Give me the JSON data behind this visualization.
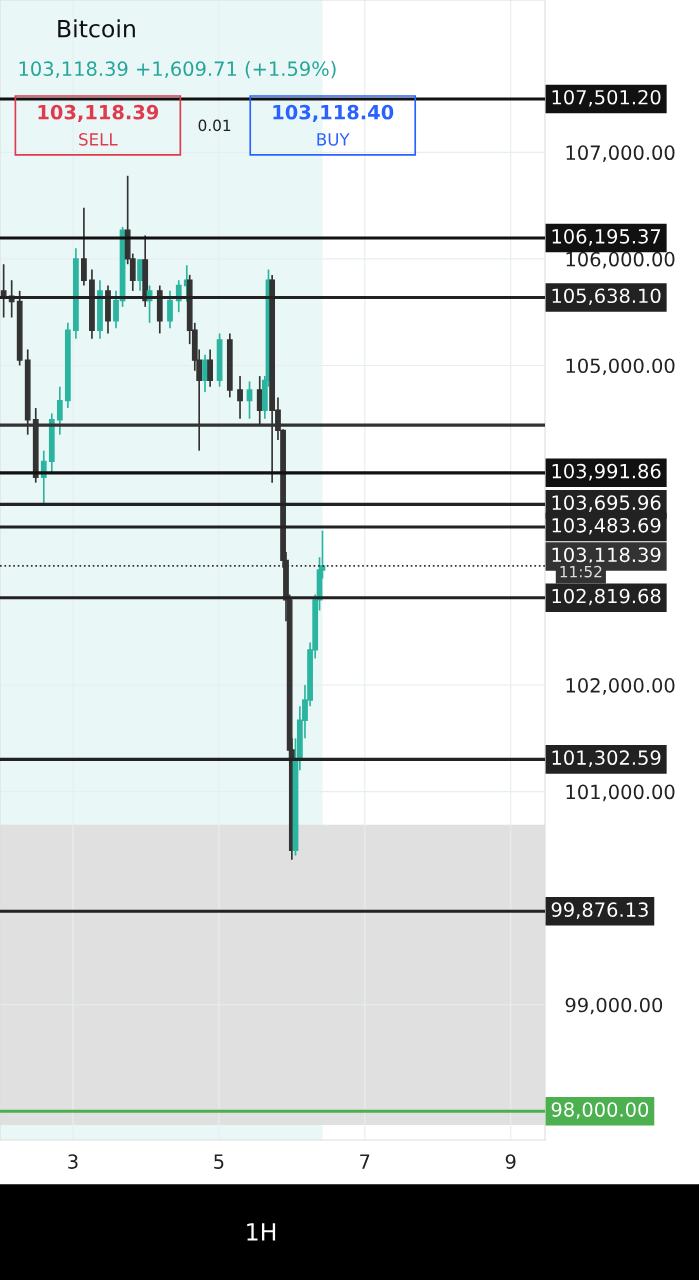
{
  "chart_data": {
    "type": "candlestick",
    "title": "Bitcoin",
    "subtitle": "103,118.39 +1,609.71 (+1.59%)",
    "annotations": [
      "103,118.39",
      "SELL",
      "0.01",
      "103,118.40",
      "BUY",
      "11:52",
      "1H"
    ],
    "x": [
      2.05,
      2.16,
      2.27,
      2.38,
      2.49,
      2.6,
      2.71,
      2.82,
      2.93,
      3.04,
      3.15,
      3.26,
      3.37,
      3.48,
      3.59,
      3.68,
      3.75,
      3.82,
      3.92,
      3.99,
      4.05,
      4.19,
      4.33,
      4.45,
      4.56,
      4.6,
      4.67,
      4.73,
      4.81,
      4.88,
      5.01,
      5.15,
      5.29,
      5.42,
      5.56,
      5.63,
      5.68,
      5.73,
      5.81,
      5.88,
      5.92,
      5.97,
      6.0,
      6.05,
      6.11,
      6.18,
      6.25,
      6.32,
      6.38,
      6.42
    ],
    "ohlc": [
      [
        105700,
        105950,
        105450,
        105650
      ],
      [
        105650,
        105800,
        105450,
        105600
      ],
      [
        105600,
        105700,
        105000,
        105050
      ],
      [
        105050,
        105150,
        104350,
        104490
      ],
      [
        104490,
        104600,
        103900,
        103950
      ],
      [
        103950,
        104200,
        103690,
        104100
      ],
      [
        104100,
        104550,
        104000,
        104490
      ],
      [
        104490,
        104800,
        104350,
        104670
      ],
      [
        104670,
        105400,
        104600,
        105330
      ],
      [
        105330,
        106100,
        105250,
        106000
      ],
      [
        106000,
        106480,
        105750,
        105800
      ],
      [
        105800,
        105900,
        105250,
        105330
      ],
      [
        105330,
        105800,
        105250,
        105700
      ],
      [
        105700,
        105750,
        105300,
        105420
      ],
      [
        105420,
        105700,
        105350,
        105610
      ],
      [
        105610,
        106300,
        105550,
        106270
      ],
      [
        106270,
        106780,
        105950,
        106000
      ],
      [
        106000,
        106050,
        105700,
        105800
      ],
      [
        105800,
        106000,
        105700,
        105990
      ],
      [
        105990,
        106220,
        105550,
        105610
      ],
      [
        105610,
        105750,
        105400,
        105700
      ],
      [
        105700,
        105750,
        105300,
        105420
      ],
      [
        105420,
        105700,
        105350,
        105610
      ],
      [
        105610,
        105800,
        105500,
        105750
      ],
      [
        105750,
        105940,
        105600,
        105800
      ],
      [
        105800,
        105850,
        105200,
        105330
      ],
      [
        105330,
        105400,
        104950,
        105050
      ],
      [
        105050,
        105150,
        104200,
        104860
      ],
      [
        104860,
        105100,
        104750,
        105050
      ],
      [
        105050,
        105150,
        104800,
        104860
      ],
      [
        104860,
        105300,
        104800,
        105240
      ],
      [
        105240,
        105300,
        104700,
        104770
      ],
      [
        104770,
        104900,
        104500,
        104670
      ],
      [
        104670,
        104850,
        104500,
        104770
      ],
      [
        104770,
        104900,
        104450,
        104580
      ],
      [
        104580,
        104900,
        104500,
        104860
      ],
      [
        104860,
        105900,
        104800,
        105800
      ],
      [
        105800,
        105850,
        103900,
        104580
      ],
      [
        104580,
        104700,
        104300,
        104390
      ],
      [
        104390,
        104400,
        103100,
        103170
      ],
      [
        103170,
        103250,
        102600,
        102800
      ],
      [
        102800,
        102850,
        101300,
        101390
      ],
      [
        101390,
        101500,
        100360,
        100450
      ],
      [
        100450,
        101500,
        100400,
        101300
      ],
      [
        101300,
        101800,
        101200,
        101670
      ],
      [
        101670,
        102000,
        101500,
        101860
      ],
      [
        101860,
        102400,
        101800,
        102330
      ],
      [
        102330,
        102850,
        102250,
        102800
      ],
      [
        102800,
        103200,
        102700,
        103080
      ],
      [
        103080,
        103450,
        103000,
        103118
      ]
    ],
    "colors": [
      "#333333",
      "#333333",
      "#333333",
      "#333333",
      "#333333",
      "#2bb5a0",
      "#2bb5a0",
      "#2bb5a0",
      "#2bb5a0",
      "#2bb5a0",
      "#333333",
      "#333333",
      "#2bb5a0",
      "#333333",
      "#2bb5a0",
      "#2bb5a0",
      "#333333",
      "#333333",
      "#2bb5a0",
      "#333333",
      "#2bb5a0",
      "#333333",
      "#2bb5a0",
      "#2bb5a0",
      "#2bb5a0",
      "#333333",
      "#333333",
      "#333333",
      "#2bb5a0",
      "#333333",
      "#2bb5a0",
      "#333333",
      "#333333",
      "#2bb5a0",
      "#333333",
      "#2bb5a0",
      "#2bb5a0",
      "#333333",
      "#333333",
      "#333333",
      "#333333",
      "#333333",
      "#333333",
      "#2bb5a0",
      "#2bb5a0",
      "#2bb5a0",
      "#2bb5a0",
      "#2bb5a0",
      "#2bb5a0",
      "#2bb5a0"
    ],
    "xlim": [
      2.0,
      9.47
    ],
    "xticks": [
      3,
      5,
      7,
      9
    ],
    "ylim": [
      97730,
      108430
    ],
    "yticks": [
      {
        "value": 99000,
        "label": "99,000.00"
      },
      {
        "value": 101000,
        "label": "101,000.00"
      },
      {
        "value": 102000,
        "label": "102,000.00"
      },
      {
        "value": 105000,
        "label": "105,000.00"
      },
      {
        "value": 106000,
        "label": "106,000.00"
      },
      {
        "value": 107000,
        "label": "107,000.00"
      }
    ],
    "grid": true,
    "ref_lines": [
      {
        "axis": "y",
        "value": 107501.2,
        "label": "107,501.20",
        "color": "#111111"
      },
      {
        "axis": "y",
        "value": 106195.37,
        "label": "106,195.37",
        "color": "#111111"
      },
      {
        "axis": "y",
        "value": 105638.1,
        "label": "105,638.10",
        "color": "#222222"
      },
      {
        "axis": "y",
        "value": 104440,
        "label": null,
        "color": "#333333"
      },
      {
        "axis": "y",
        "value": 103991.86,
        "label": "103,991.86",
        "color": "#111111"
      },
      {
        "axis": "y",
        "value": 103695.96,
        "label": "103,695.96",
        "color": "#222222"
      },
      {
        "axis": "y",
        "value": 103483.69,
        "label": "103,483.69",
        "color": "#222222"
      },
      {
        "axis": "y",
        "value": 103118.39,
        "label": "103,118.39",
        "color": "#333333",
        "line_style": "dotted"
      },
      {
        "axis": "y",
        "value": 102819.68,
        "label": "102,819.68",
        "color": "#222222"
      },
      {
        "axis": "y",
        "value": 101302.59,
        "label": "101,302.59",
        "color": "#222222"
      },
      {
        "axis": "y",
        "value": 99876.13,
        "label": "99,876.13",
        "color": "#222222"
      },
      {
        "axis": "y",
        "value": 98000.0,
        "label": "98,000.00",
        "color": "#4caf50"
      }
    ],
    "bands": [
      {
        "axis": "x",
        "from": 2.0,
        "to": 6.42,
        "color": "#eaf7f7"
      },
      {
        "axis": "y",
        "from": 97870,
        "to": 100690,
        "color": "#e0e0e0"
      }
    ]
  }
}
